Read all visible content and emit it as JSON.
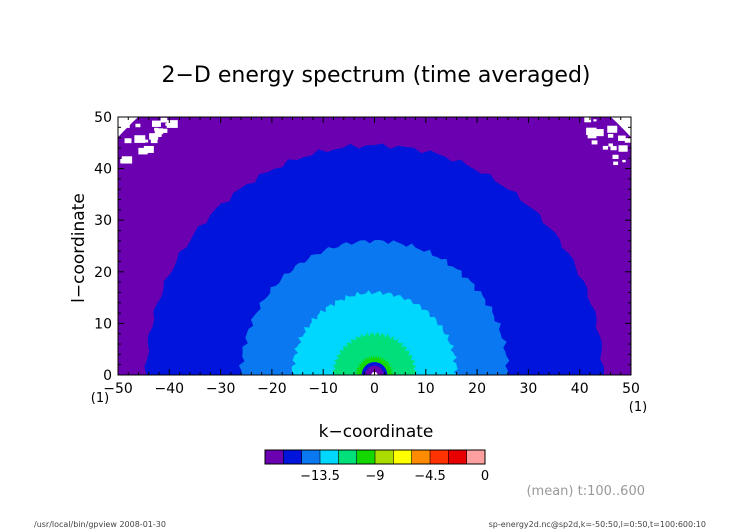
{
  "chart_data": {
    "type": "heatmap",
    "title": "2−D energy spectrum (time averaged)",
    "xlabel": "k−coordinate",
    "ylabel": "l−coordinate",
    "xlim": [
      -50,
      50
    ],
    "ylim": [
      0,
      50
    ],
    "xticks": [
      -50,
      -40,
      -30,
      -20,
      -10,
      0,
      10,
      20,
      30,
      40,
      50
    ],
    "yticks": [
      0,
      10,
      20,
      30,
      40,
      50
    ],
    "xtick_labels": [
      "−50",
      "−40",
      "−30",
      "−20",
      "−10",
      "0",
      "10",
      "20",
      "30",
      "40",
      "50"
    ],
    "ytick_labels": [
      "0",
      "10",
      "20",
      "30",
      "40",
      "50"
    ],
    "x_edge_note_left": "(1)",
    "x_edge_note_right": "(1)",
    "contour_levels_note": "filled contours of time-averaged energy; each band boundary is approximately a semicircle of radius r centered at k=0, l=0",
    "bands": [
      {
        "level_max": -15.0,
        "color": "#6a00b0",
        "radius_min": 44.5,
        "radius_max": 68
      },
      {
        "level_max": -13.5,
        "color": "#0014dc",
        "radius_min": 26.0,
        "radius_max": 44.5
      },
      {
        "level_max": -12.0,
        "color": "#0a78f0",
        "radius_min": 16.0,
        "radius_max": 26.0
      },
      {
        "level_max": -10.5,
        "color": "#00d7ff",
        "radius_min": 8.0,
        "radius_max": 16.0
      },
      {
        "level_max": -9.0,
        "color": "#00e07a",
        "radius_min": 3.5,
        "radius_max": 8.0
      },
      {
        "level_max": -7.5,
        "color": "#14d700",
        "radius_min": 2.5,
        "radius_max": 3.5
      },
      {
        "level_max": -6.0,
        "color": "#0014dc",
        "radius_min": 1.8,
        "radius_max": 2.5
      },
      {
        "level_max": -4.5,
        "color": "#6a00b0",
        "radius_min": 0.8,
        "radius_max": 1.8
      }
    ],
    "colorbar": {
      "colors": [
        "#6a00b0",
        "#0014dc",
        "#0a78f0",
        "#00d7ff",
        "#00e07a",
        "#14d700",
        "#aadc00",
        "#ffff00",
        "#ff8c00",
        "#ff3200",
        "#e80000",
        "#ffa0a0"
      ],
      "tick_values": [
        -13.5,
        -9,
        -4.5,
        0
      ],
      "tick_labels": [
        "−13.5",
        "−9",
        "−4.5",
        "0"
      ],
      "segments_per_unit": 1.5
    },
    "grid": false,
    "legend": "colorbar below plot"
  },
  "annotations": {
    "mean_range": "(mean) t:100..600",
    "footer_left": "/usr/local/bin/gpview   2008-01-30",
    "footer_right": "sp-energy2d.nc@sp2d,k=-50:50,l=0:50,t=100:600:10"
  }
}
